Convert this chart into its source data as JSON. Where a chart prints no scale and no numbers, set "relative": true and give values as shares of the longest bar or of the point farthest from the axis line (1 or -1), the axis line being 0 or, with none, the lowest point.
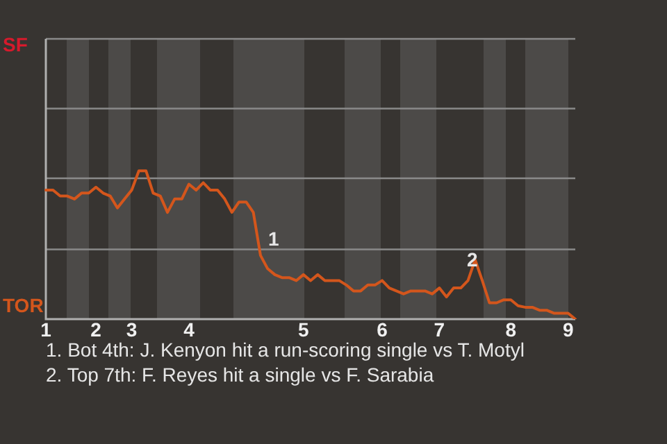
{
  "chart_data": {
    "type": "line",
    "relative": true,
    "categories": [
      "1",
      null,
      null,
      null,
      null,
      null,
      null,
      "2",
      null,
      null,
      null,
      null,
      "3",
      null,
      null,
      null,
      null,
      null,
      null,
      null,
      "4",
      null,
      null,
      null,
      null,
      null,
      null,
      null,
      null,
      null,
      null,
      null,
      null,
      null,
      null,
      null,
      "5",
      null,
      null,
      null,
      null,
      null,
      null,
      null,
      null,
      null,
      null,
      "6",
      null,
      null,
      null,
      null,
      null,
      null,
      null,
      "7",
      null,
      null,
      null,
      null,
      null,
      null,
      null,
      null,
      null,
      "8",
      null,
      null,
      null,
      null,
      null,
      null,
      null,
      "9",
      null
    ],
    "series": [
      {
        "color": "#d4561c",
        "values": [
          0.87,
          0.87,
          0.83,
          0.83,
          0.81,
          0.85,
          0.85,
          0.89,
          0.85,
          0.83,
          0.75,
          0.81,
          0.87,
          1,
          1,
          0.85,
          0.83,
          0.72,
          0.81,
          0.81,
          0.91,
          0.87,
          0.92,
          0.87,
          0.87,
          0.81,
          0.72,
          0.79,
          0.79,
          0.72,
          0.43,
          0.34,
          0.3,
          0.28,
          0.28,
          0.26,
          0.3,
          0.26,
          0.3,
          0.26,
          0.26,
          0.26,
          0.23,
          0.19,
          0.19,
          0.23,
          0.23,
          0.26,
          0.21,
          0.19,
          0.17,
          0.19,
          0.19,
          0.19,
          0.17,
          0.21,
          0.15,
          0.21,
          0.21,
          0.26,
          0.4,
          0.26,
          0.11,
          0.11,
          0.13,
          0.13,
          0.09,
          0.08,
          0.08,
          0.06,
          0.06,
          0.04,
          0.04,
          0.04,
          0
        ]
      }
    ],
    "ref_lines": [
      {
        "axis": "y",
        "value": 0.47,
        "color": "#8a8a8a"
      },
      {
        "axis": "y",
        "value": 0.95,
        "color": "#8a8a8a"
      },
      {
        "axis": "y",
        "value": 1.42,
        "color": "#8a8a8a"
      },
      {
        "axis": "y",
        "value": 1.89,
        "color": "#8a8a8a"
      }
    ],
    "legend": false,
    "marker": "none",
    "line_style": "solid",
    "annotations": [
      "SF",
      "TOR",
      "1",
      "2",
      "1. Bot 4th: J. Kenyon hit a run-scoring single vs T. Motyl",
      "2. Top 7th: F. Reyes hit a single vs F. Sarabia"
    ]
  }
}
